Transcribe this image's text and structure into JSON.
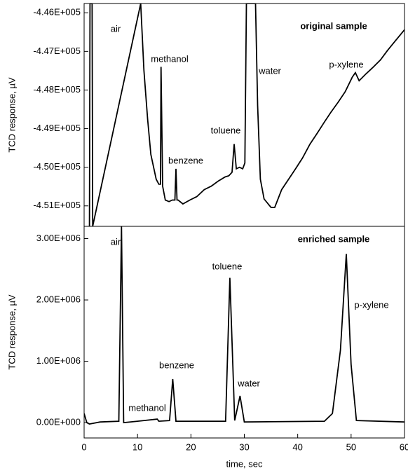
{
  "chart_data": [
    {
      "type": "line",
      "title": "original sample",
      "y_label": "TCD response, µV",
      "color": "#000000",
      "xlim": [
        0,
        60
      ],
      "ylim": [
        -451530,
        -445760
      ],
      "yticks": [
        {
          "value": -446000,
          "label": "-4.46E+005"
        },
        {
          "value": -447000,
          "label": "-4.47E+005"
        },
        {
          "value": -448000,
          "label": "-4.48E+005"
        },
        {
          "value": -449000,
          "label": "-4.49E+005"
        },
        {
          "value": -450000,
          "label": "-4.50E+005"
        },
        {
          "value": -451000,
          "label": "-4.51E+005"
        }
      ],
      "annotations": [
        "air",
        "methanol",
        "benzene",
        "toluene",
        "water",
        "p-xylene"
      ],
      "x": [
        1.0,
        1.1,
        1.5,
        1.6,
        10.6,
        11.2,
        11.9,
        12.5,
        13.5,
        14.0,
        14.3,
        14.4,
        14.7,
        15.2,
        15.9,
        16.5,
        17.0,
        17.2,
        17.4,
        17.6,
        18.5,
        19.8,
        21.1,
        22.5,
        23.8,
        25.1,
        26.4,
        27.1,
        27.7,
        28.1,
        28.5,
        29.1,
        29.7,
        30.1,
        30.4,
        32.1,
        32.5,
        33.0,
        33.7,
        35.0,
        35.7,
        37.0,
        38.3,
        39.6,
        40.9,
        42.3,
        43.6,
        44.9,
        46.2,
        47.6,
        48.9,
        50.2,
        50.8,
        51.5,
        52.8,
        54.2,
        55.5,
        56.8,
        58.1,
        60.0
      ],
      "values": [
        -451530,
        -445760,
        -445760,
        -451530,
        -445760,
        -447490,
        -448760,
        -449670,
        -450310,
        -450440,
        -450440,
        -447400,
        -450490,
        -450850,
        -450890,
        -450850,
        -450850,
        -450040,
        -450850,
        -450850,
        -450950,
        -450850,
        -450760,
        -450580,
        -450490,
        -450360,
        -450250,
        -450220,
        -450130,
        -449400,
        -450040,
        -450000,
        -450040,
        -449890,
        -445760,
        -445760,
        -448400,
        -450310,
        -450820,
        -451040,
        -451040,
        -450580,
        -450310,
        -450040,
        -449760,
        -449400,
        -449130,
        -448850,
        -448580,
        -448310,
        -448040,
        -447670,
        -447550,
        -447760,
        -447580,
        -447400,
        -447220,
        -446980,
        -446760,
        -446440
      ]
    },
    {
      "type": "line",
      "title": "enriched sample",
      "y_label": "TCD response, µV",
      "x_label": "time, sec",
      "color": "#000000",
      "xlim": [
        0,
        60
      ],
      "ylim": [
        -250000,
        3200000
      ],
      "xticks": [
        0,
        10,
        20,
        30,
        40,
        50,
        60
      ],
      "yticks": [
        {
          "value": 0,
          "label": "0.00E+000"
        },
        {
          "value": 1000000,
          "label": "1.00E+006"
        },
        {
          "value": 2000000,
          "label": "2.00E+006"
        },
        {
          "value": 3000000,
          "label": "3.00E+006"
        }
      ],
      "annotations": [
        "air",
        "methanol",
        "benzene",
        "toluene",
        "water",
        "p-xylene"
      ],
      "x": [
        0,
        0.5,
        1,
        3,
        6.5,
        7.0,
        7.4,
        10,
        13.7,
        14,
        16,
        16.6,
        17.2,
        26.5,
        27.3,
        28.2,
        29.2,
        30,
        45,
        46.5,
        48,
        49.1,
        50,
        51,
        60
      ],
      "values": [
        149000,
        0,
        -23000,
        11000,
        23000,
        3200000,
        0,
        23000,
        57000,
        23000,
        34000,
        710000,
        23000,
        23000,
        2360000,
        34000,
        435000,
        11000,
        23000,
        149000,
        1180000,
        2750000,
        950000,
        34000,
        11000
      ]
    }
  ]
}
